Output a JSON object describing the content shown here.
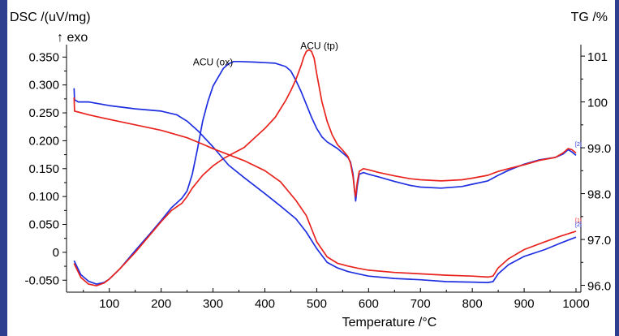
{
  "chart_data": {
    "type": "line",
    "xlabel": "Temperature /°C",
    "ylabel_left": "DSC /(uV/mg)",
    "ylabel_left_sub": "↑ exo",
    "ylabel_right": "TG /%",
    "xlim": [
      30,
      1000
    ],
    "ylim_left": [
      -0.07,
      0.365
    ],
    "ylim_right": [
      95.85,
      101.25
    ],
    "x_ticks": [
      {
        "v": 100,
        "label": "100"
      },
      {
        "v": 200,
        "label": "200"
      },
      {
        "v": 300,
        "label": "300"
      },
      {
        "v": 400,
        "label": "400"
      },
      {
        "v": 500,
        "label": "500"
      },
      {
        "v": 600,
        "label": "600"
      },
      {
        "v": 700,
        "label": "700"
      },
      {
        "v": 800,
        "label": "800"
      },
      {
        "v": 900,
        "label": "900"
      },
      {
        "v": 1000,
        "label": "1000"
      }
    ],
    "y_left_ticks": [
      {
        "v": 0.35,
        "label": "0.350"
      },
      {
        "v": 0.3,
        "label": "0.300"
      },
      {
        "v": 0.25,
        "label": "0.250"
      },
      {
        "v": 0.2,
        "label": "0.200"
      },
      {
        "v": 0.15,
        "label": "0.150"
      },
      {
        "v": 0.1,
        "label": "0.100"
      },
      {
        "v": 0.05,
        "label": "0.050"
      },
      {
        "v": 0,
        "label": "0"
      },
      {
        "v": -0.05,
        "label": "-0.050"
      }
    ],
    "y_right_ticks": [
      {
        "v": 101,
        "label": "101"
      },
      {
        "v": 100,
        "label": "100"
      },
      {
        "v": 99,
        "label": "99.0"
      },
      {
        "v": 98,
        "label": "98.0"
      },
      {
        "v": 97,
        "label": "97.0"
      },
      {
        "v": 96,
        "label": "96.0"
      }
    ],
    "annotations": [
      {
        "text": "ACU (ox)",
        "x": 300,
        "y": 0.335,
        "axis": "left"
      },
      {
        "text": "ACU (tp)",
        "x": 505,
        "y": 0.364,
        "axis": "left"
      }
    ],
    "series": [
      {
        "id": "dsc-ox",
        "axis": "left",
        "color": "#1f2fe0",
        "x": [
          32,
          45,
          60,
          75,
          90,
          100,
          120,
          150,
          180,
          200,
          220,
          240,
          250,
          260,
          270,
          280,
          290,
          300,
          320,
          330,
          340,
          350,
          380,
          400,
          420,
          440,
          450,
          460,
          470,
          480,
          490,
          500,
          510,
          520,
          530,
          540,
          550,
          560,
          565,
          570,
          573,
          575,
          578,
          582,
          590,
          600,
          620,
          650,
          680,
          700,
          740,
          780,
          800,
          830,
          850,
          870,
          900,
          930,
          960,
          975,
          985,
          992,
          1000
        ],
        "y": [
          -0.015,
          -0.04,
          -0.052,
          -0.057,
          -0.054,
          -0.048,
          -0.03,
          0.003,
          0.035,
          0.057,
          0.08,
          0.097,
          0.11,
          0.14,
          0.185,
          0.235,
          0.27,
          0.298,
          0.33,
          0.338,
          0.342,
          0.342,
          0.341,
          0.34,
          0.339,
          0.333,
          0.325,
          0.308,
          0.288,
          0.265,
          0.242,
          0.222,
          0.207,
          0.198,
          0.192,
          0.186,
          0.178,
          0.17,
          0.162,
          0.14,
          0.11,
          0.092,
          0.118,
          0.14,
          0.143,
          0.14,
          0.135,
          0.127,
          0.12,
          0.117,
          0.115,
          0.118,
          0.122,
          0.128,
          0.138,
          0.147,
          0.158,
          0.166,
          0.17,
          0.176,
          0.184,
          0.18,
          0.174
        ]
      },
      {
        "id": "dsc-tp",
        "axis": "left",
        "color": "#e8231e",
        "x": [
          32,
          45,
          60,
          75,
          90,
          100,
          120,
          150,
          180,
          200,
          220,
          240,
          250,
          260,
          280,
          300,
          320,
          340,
          360,
          380,
          400,
          420,
          440,
          450,
          460,
          470,
          475,
          480,
          485,
          490,
          495,
          500,
          510,
          520,
          530,
          540,
          550,
          560,
          565,
          570,
          573,
          575,
          578,
          582,
          590,
          600,
          620,
          650,
          680,
          700,
          740,
          780,
          800,
          830,
          850,
          870,
          900,
          930,
          960,
          975,
          985,
          992,
          1000
        ],
        "y": [
          -0.02,
          -0.045,
          -0.057,
          -0.06,
          -0.055,
          -0.048,
          -0.03,
          0.0,
          0.033,
          0.055,
          0.075,
          0.088,
          0.1,
          0.115,
          0.138,
          0.155,
          0.168,
          0.178,
          0.188,
          0.205,
          0.222,
          0.242,
          0.272,
          0.29,
          0.31,
          0.335,
          0.35,
          0.36,
          0.363,
          0.36,
          0.348,
          0.32,
          0.27,
          0.235,
          0.21,
          0.193,
          0.183,
          0.172,
          0.16,
          0.135,
          0.11,
          0.1,
          0.125,
          0.145,
          0.15,
          0.148,
          0.143,
          0.137,
          0.132,
          0.13,
          0.128,
          0.13,
          0.133,
          0.138,
          0.145,
          0.15,
          0.157,
          0.165,
          0.17,
          0.178,
          0.186,
          0.184,
          0.178
        ]
      },
      {
        "id": "tg-ox",
        "axis": "right",
        "color": "#1f2fe0",
        "x": [
          32,
          33,
          40,
          60,
          100,
          150,
          200,
          230,
          250,
          270,
          300,
          330,
          360,
          400,
          430,
          460,
          480,
          500,
          520,
          540,
          560,
          580,
          600,
          650,
          700,
          750,
          800,
          830,
          840,
          850,
          870,
          900,
          940,
          970,
          1000
        ],
        "y": [
          100.3,
          100.05,
          100.0,
          100.0,
          99.92,
          99.85,
          99.8,
          99.72,
          99.58,
          99.38,
          99.02,
          98.62,
          98.35,
          98.0,
          97.73,
          97.45,
          97.16,
          96.8,
          96.5,
          96.38,
          96.3,
          96.25,
          96.2,
          96.15,
          96.12,
          96.08,
          96.07,
          96.06,
          96.08,
          96.25,
          96.45,
          96.63,
          96.78,
          96.92,
          97.05
        ]
      },
      {
        "id": "tg-tp",
        "axis": "right",
        "color": "#e8231e",
        "x": [
          32,
          33,
          40,
          60,
          100,
          150,
          200,
          250,
          280,
          300,
          330,
          360,
          400,
          430,
          460,
          480,
          500,
          520,
          540,
          560,
          580,
          600,
          650,
          700,
          750,
          800,
          830,
          840,
          850,
          870,
          900,
          940,
          970,
          1000
        ],
        "y": [
          100.1,
          99.8,
          99.78,
          99.72,
          99.62,
          99.5,
          99.38,
          99.22,
          99.08,
          98.98,
          98.85,
          98.72,
          98.5,
          98.26,
          97.85,
          97.52,
          96.95,
          96.62,
          96.48,
          96.42,
          96.37,
          96.33,
          96.28,
          96.25,
          96.22,
          96.2,
          96.18,
          96.2,
          96.38,
          96.58,
          96.78,
          96.95,
          97.07,
          97.18
        ]
      }
    ]
  }
}
